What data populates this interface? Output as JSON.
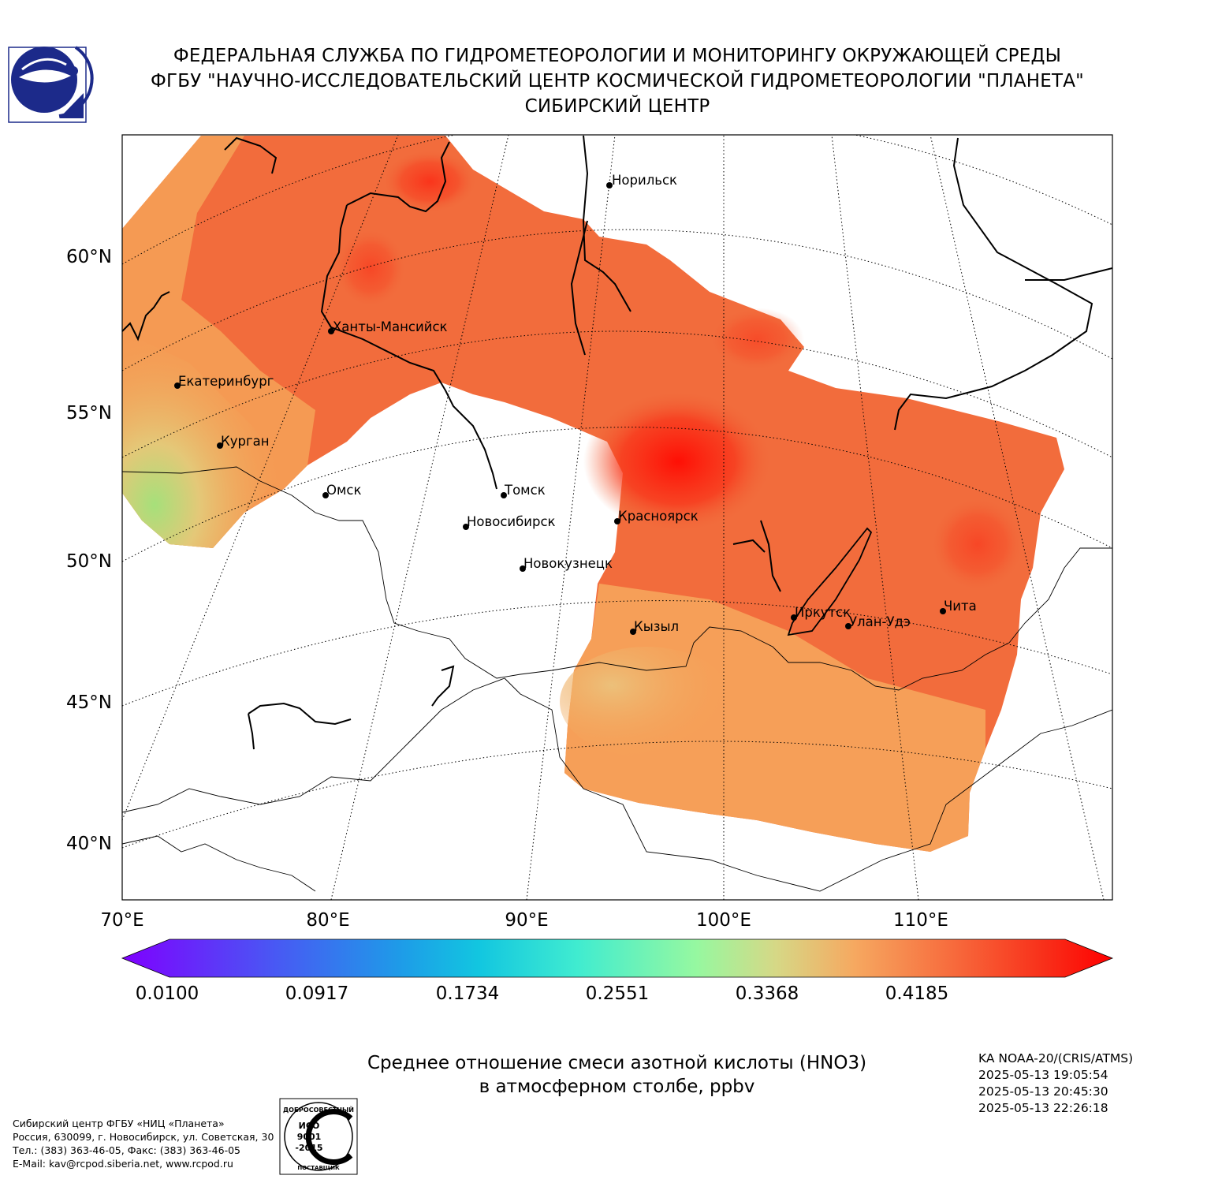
{
  "header": {
    "line1": "ФЕДЕРАЛЬНАЯ СЛУЖБА ПО ГИДРОМЕТЕОРОЛОГИИ И МОНИТОРИНГУ ОКРУЖАЮЩЕЙ СРЕДЫ",
    "line2": "ФГБУ \"НАУЧНО-ИССЛЕДОВАТЕЛЬСКИЙ ЦЕНТР КОСМИЧЕСКОЙ ГИДРОМЕТЕОРОЛОГИИ \"ПЛАНЕТА\"",
    "line3": "СИБИРСКИЙ ЦЕНТР"
  },
  "map": {
    "lat_labels": [
      "60°N",
      "55°N",
      "50°N",
      "45°N",
      "40°N"
    ],
    "lon_labels": [
      "70°E",
      "80°E",
      "90°E",
      "100°E",
      "110°E"
    ],
    "cities": [
      {
        "name": "Норильск"
      },
      {
        "name": "Ханты-Мансийск"
      },
      {
        "name": "Екатеринбург"
      },
      {
        "name": "Курган"
      },
      {
        "name": "Омск"
      },
      {
        "name": "Томск"
      },
      {
        "name": "Новосибирск"
      },
      {
        "name": "Красноярск"
      },
      {
        "name": "Новокузнецк"
      },
      {
        "name": "Кызыл"
      },
      {
        "name": "Иркутск"
      },
      {
        "name": "Улан-Удэ"
      },
      {
        "name": "Чита"
      }
    ],
    "colors": {
      "low": "#e9c06e",
      "mid": "#f5a055",
      "high": "#f06a3a",
      "max": "#ff1a0a"
    }
  },
  "colorbar": {
    "ticks": [
      "0.0100",
      "0.0917",
      "0.1734",
      "0.2551",
      "0.3368",
      "0.4185"
    ],
    "min": 0.01,
    "max": 0.5
  },
  "title": {
    "line1": "Среднее отношение смеси азотной кислоты (HNO3)",
    "line2": "в атмосферном столбе, ppbv"
  },
  "satellite": {
    "name": "KA NOAA-20/(CRIS/ATMS)",
    "t1": "2025-05-13 19:05:54",
    "t2": "2025-05-13 20:45:30",
    "t3": "2025-05-13 22:26:18"
  },
  "footer": {
    "line1": "Сибирский центр ФГБУ «НИЦ «Планета»",
    "line2": "Россия, 630099, г. Новосибирск, ул. Советская, 30",
    "line3": "Тел.: (383) 363-46-05, Факс: (383) 363-46-05",
    "line4": "E-Mail: kav@rcpod.siberia.net, www.rcpod.ru"
  },
  "iso_badge": {
    "top": "ДОБРОСОВЕСТНЫЙ",
    "mid1": "ИСО",
    "mid2": "9001",
    "mid3": "-2015",
    "bottom": "ПОСТАВЩИК"
  }
}
